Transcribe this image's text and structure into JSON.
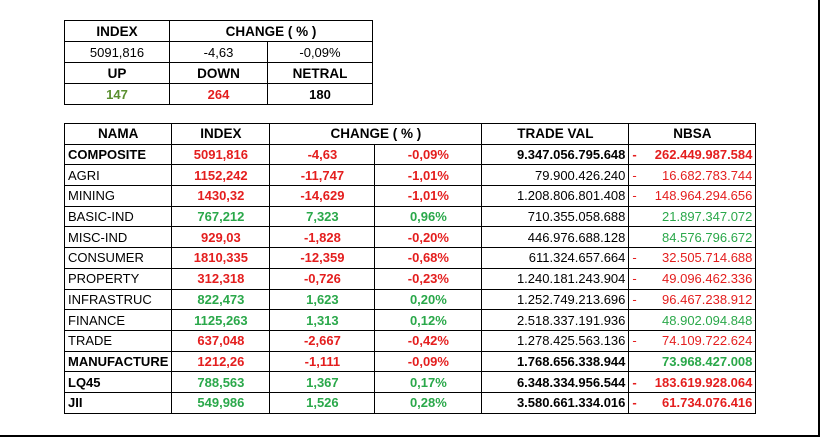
{
  "summary": {
    "headers": {
      "index": "INDEX",
      "change": "CHANGE ( % )",
      "up": "UP",
      "down": "DOWN",
      "netral": "NETRAL"
    },
    "index_value": "5091,816",
    "change_value": "-4,63",
    "change_pct": "-0,09%",
    "up_count": "147",
    "down_count": "264",
    "netral_count": "180",
    "colors": {
      "up": "#5a8f2f",
      "down": "#e41e1e",
      "netral": "#000000"
    }
  },
  "table": {
    "columns": {
      "nama": "NAMA",
      "index": "INDEX",
      "change": "CHANGE ( % )",
      "trade_val": "TRADE VAL",
      "nbsa": "NBSA"
    },
    "rows": [
      {
        "nama": "COMPOSITE",
        "index": "5091,816",
        "change": "-4,63",
        "pct": "-0,09%",
        "trade_val": "9.347.056.795.648",
        "nbsa_sign": "-",
        "nbsa": "262.449.987.584",
        "trend": "red",
        "nbsa_trend": "red",
        "bold": true
      },
      {
        "nama": "AGRI",
        "index": "1152,242",
        "change": "-11,747",
        "pct": "-1,01%",
        "trade_val": "79.900.426.240",
        "nbsa_sign": "-",
        "nbsa": "16.682.783.744",
        "trend": "red",
        "nbsa_trend": "red",
        "bold": false
      },
      {
        "nama": "MINING",
        "index": "1430,32",
        "change": "-14,629",
        "pct": "-1,01%",
        "trade_val": "1.208.806.801.408",
        "nbsa_sign": "-",
        "nbsa": "148.964.294.656",
        "trend": "red",
        "nbsa_trend": "red",
        "bold": false
      },
      {
        "nama": "BASIC-IND",
        "index": "767,212",
        "change": "7,323",
        "pct": "0,96%",
        "trade_val": "710.355.058.688",
        "nbsa_sign": "",
        "nbsa": "21.897.347.072",
        "trend": "green",
        "nbsa_trend": "green",
        "bold": false
      },
      {
        "nama": "MISC-IND",
        "index": "929,03",
        "change": "-1,828",
        "pct": "-0,20%",
        "trade_val": "446.976.688.128",
        "nbsa_sign": "",
        "nbsa": "84.576.796.672",
        "trend": "red",
        "nbsa_trend": "green",
        "bold": false
      },
      {
        "nama": "CONSUMER",
        "index": "1810,335",
        "change": "-12,359",
        "pct": "-0,68%",
        "trade_val": "611.324.657.664",
        "nbsa_sign": "-",
        "nbsa": "32.505.714.688",
        "trend": "red",
        "nbsa_trend": "red",
        "bold": false
      },
      {
        "nama": "PROPERTY",
        "index": "312,318",
        "change": "-0,726",
        "pct": "-0,23%",
        "trade_val": "1.240.181.243.904",
        "nbsa_sign": "-",
        "nbsa": "49.096.462.336",
        "trend": "red",
        "nbsa_trend": "red",
        "bold": false
      },
      {
        "nama": "INFRASTRUC",
        "index": "822,473",
        "change": "1,623",
        "pct": "0,20%",
        "trade_val": "1.252.749.213.696",
        "nbsa_sign": "-",
        "nbsa": "96.467.238.912",
        "trend": "green",
        "nbsa_trend": "red",
        "bold": false
      },
      {
        "nama": "FINANCE",
        "index": "1125,263",
        "change": "1,313",
        "pct": "0,12%",
        "trade_val": "2.518.337.191.936",
        "nbsa_sign": "",
        "nbsa": "48.902.094.848",
        "trend": "green",
        "nbsa_trend": "green",
        "bold": false
      },
      {
        "nama": "TRADE",
        "index": "637,048",
        "change": "-2,667",
        "pct": "-0,42%",
        "trade_val": "1.278.425.563.136",
        "nbsa_sign": "-",
        "nbsa": "74.109.722.624",
        "trend": "red",
        "nbsa_trend": "red",
        "bold": false
      },
      {
        "nama": "MANUFACTURE",
        "index": "1212,26",
        "change": "-1,111",
        "pct": "-0,09%",
        "trade_val": "1.768.656.338.944",
        "nbsa_sign": "",
        "nbsa": "73.968.427.008",
        "trend": "red",
        "nbsa_trend": "green",
        "bold": true
      },
      {
        "nama": "LQ45",
        "index": "788,563",
        "change": "1,367",
        "pct": "0,17%",
        "trade_val": "6.348.334.956.544",
        "nbsa_sign": "-",
        "nbsa": "183.619.928.064",
        "trend": "green",
        "nbsa_trend": "red",
        "bold": true
      },
      {
        "nama": "JII",
        "index": "549,986",
        "change": "1,526",
        "pct": "0,28%",
        "trade_val": "3.580.661.334.016",
        "nbsa_sign": "-",
        "nbsa": "61.734.076.416",
        "trend": "green",
        "nbsa_trend": "red",
        "bold": true
      }
    ]
  }
}
